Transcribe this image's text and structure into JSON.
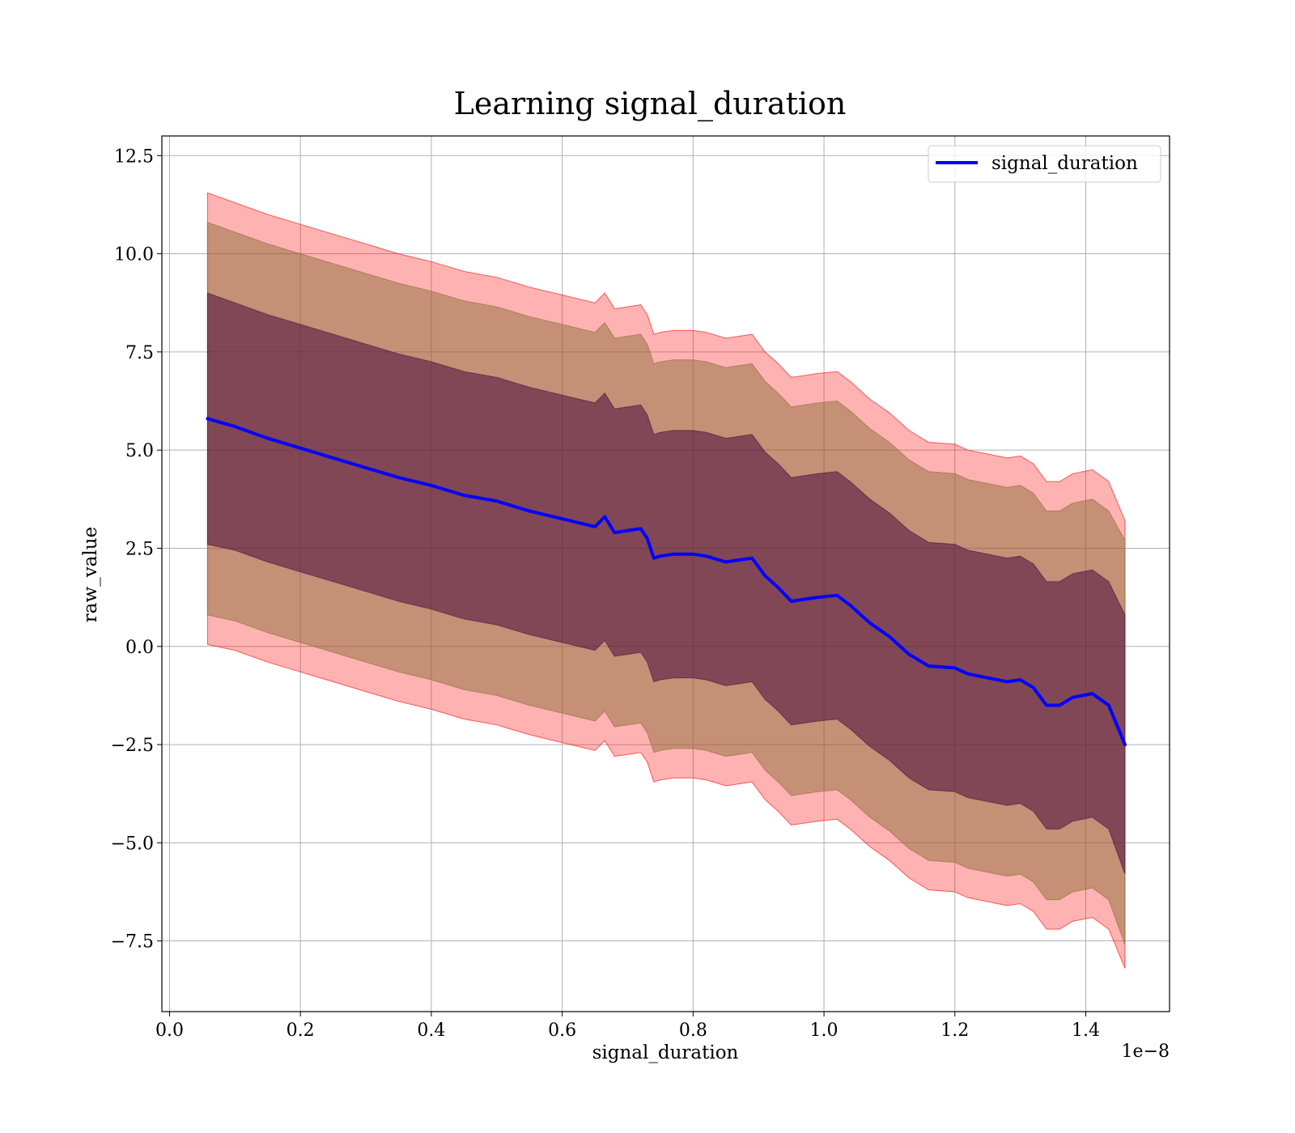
{
  "chart_data": {
    "type": "area",
    "title": "Learning signal_duration",
    "xlabel": "signal_duration",
    "ylabel": "raw_value",
    "x_offset_text": "1e−8",
    "xlim": [
      -0.0117,
      1.528
    ],
    "ylim": [
      -9.3,
      13.0
    ],
    "grid": true,
    "legend_position": "top-right",
    "x_ticks": [
      0.0,
      0.2,
      0.4,
      0.6,
      0.8,
      1.0,
      1.2,
      1.4
    ],
    "x_tick_labels": [
      "0.0",
      "0.2",
      "0.4",
      "0.6",
      "0.8",
      "1.0",
      "1.2",
      "1.4"
    ],
    "y_ticks": [
      -7.5,
      -5.0,
      -2.5,
      0.0,
      2.5,
      5.0,
      7.5,
      10.0,
      12.5
    ],
    "y_tick_labels": [
      "−7.5",
      "−5.0",
      "−2.5",
      "0.0",
      "2.5",
      "5.0",
      "7.5",
      "10.0",
      "12.5"
    ],
    "x": [
      0.058,
      0.1,
      0.15,
      0.2,
      0.25,
      0.3,
      0.35,
      0.4,
      0.45,
      0.5,
      0.55,
      0.6,
      0.65,
      0.665,
      0.68,
      0.7,
      0.72,
      0.73,
      0.74,
      0.75,
      0.77,
      0.8,
      0.82,
      0.85,
      0.87,
      0.89,
      0.91,
      0.93,
      0.95,
      0.97,
      0.99,
      1.02,
      1.04,
      1.07,
      1.1,
      1.13,
      1.16,
      1.2,
      1.22,
      1.25,
      1.28,
      1.3,
      1.32,
      1.34,
      1.36,
      1.38,
      1.41,
      1.435,
      1.46
    ],
    "series": [
      {
        "name": "signal_duration",
        "color": "#0000ff",
        "values": [
          5.8,
          5.6,
          5.3,
          5.05,
          4.8,
          4.55,
          4.3,
          4.1,
          3.85,
          3.7,
          3.45,
          3.25,
          3.05,
          3.3,
          2.9,
          2.95,
          3.0,
          2.75,
          2.25,
          2.3,
          2.35,
          2.35,
          2.3,
          2.15,
          2.2,
          2.25,
          1.8,
          1.5,
          1.15,
          1.2,
          1.25,
          1.3,
          1.05,
          0.6,
          0.25,
          -0.2,
          -0.5,
          -0.55,
          -0.7,
          -0.8,
          -0.9,
          -0.85,
          -1.05,
          -1.5,
          -1.5,
          -1.3,
          -1.2,
          -1.5,
          -2.5
        ]
      }
    ],
    "bands": [
      {
        "color": "#ff0000",
        "opacity": 0.3,
        "upper": [
          11.55,
          11.3,
          11.0,
          10.75,
          10.5,
          10.25,
          10.0,
          9.8,
          9.55,
          9.4,
          9.15,
          8.95,
          8.75,
          9.0,
          8.6,
          8.65,
          8.7,
          8.45,
          7.95,
          8.0,
          8.05,
          8.05,
          8.0,
          7.85,
          7.9,
          7.95,
          7.5,
          7.2,
          6.85,
          6.9,
          6.95,
          7.0,
          6.75,
          6.3,
          5.95,
          5.5,
          5.2,
          5.15,
          5.0,
          4.9,
          4.8,
          4.85,
          4.65,
          4.2,
          4.2,
          4.4,
          4.5,
          4.2,
          3.2
        ],
        "lower": [
          0.05,
          -0.1,
          -0.4,
          -0.65,
          -0.9,
          -1.15,
          -1.4,
          -1.6,
          -1.85,
          -2.0,
          -2.25,
          -2.45,
          -2.65,
          -2.4,
          -2.8,
          -2.75,
          -2.7,
          -2.95,
          -3.45,
          -3.4,
          -3.35,
          -3.35,
          -3.4,
          -3.55,
          -3.5,
          -3.45,
          -3.9,
          -4.2,
          -4.55,
          -4.5,
          -4.45,
          -4.4,
          -4.65,
          -5.1,
          -5.45,
          -5.9,
          -6.2,
          -6.25,
          -6.4,
          -6.5,
          -6.6,
          -6.55,
          -6.75,
          -7.2,
          -7.2,
          -7.0,
          -6.9,
          -7.2,
          -8.2
        ]
      },
      {
        "color": "#8c6d3a",
        "opacity": 0.5,
        "upper": [
          10.8,
          10.55,
          10.25,
          10.0,
          9.75,
          9.5,
          9.25,
          9.05,
          8.8,
          8.65,
          8.4,
          8.2,
          8.0,
          8.25,
          7.85,
          7.9,
          7.95,
          7.7,
          7.2,
          7.25,
          7.3,
          7.3,
          7.25,
          7.1,
          7.15,
          7.2,
          6.75,
          6.45,
          6.1,
          6.15,
          6.2,
          6.25,
          6.0,
          5.55,
          5.2,
          4.75,
          4.45,
          4.4,
          4.25,
          4.15,
          4.05,
          4.1,
          3.9,
          3.45,
          3.45,
          3.65,
          3.75,
          3.45,
          2.7
        ],
        "lower": [
          0.8,
          0.65,
          0.35,
          0.1,
          -0.15,
          -0.4,
          -0.65,
          -0.85,
          -1.1,
          -1.25,
          -1.5,
          -1.7,
          -1.9,
          -1.65,
          -2.05,
          -2.0,
          -1.95,
          -2.2,
          -2.7,
          -2.65,
          -2.6,
          -2.6,
          -2.65,
          -2.8,
          -2.75,
          -2.7,
          -3.15,
          -3.45,
          -3.8,
          -3.75,
          -3.7,
          -3.65,
          -3.9,
          -4.35,
          -4.7,
          -5.15,
          -5.45,
          -5.5,
          -5.65,
          -5.75,
          -5.85,
          -5.8,
          -6.0,
          -6.45,
          -6.45,
          -6.25,
          -6.15,
          -6.45,
          -7.6
        ]
      },
      {
        "color": "#4b0b3c",
        "opacity": 0.55,
        "upper": [
          9.0,
          8.75,
          8.45,
          8.2,
          7.95,
          7.7,
          7.45,
          7.25,
          7.0,
          6.85,
          6.6,
          6.4,
          6.2,
          6.45,
          6.05,
          6.1,
          6.15,
          5.9,
          5.4,
          5.45,
          5.5,
          5.5,
          5.45,
          5.3,
          5.35,
          5.4,
          4.95,
          4.65,
          4.3,
          4.35,
          4.4,
          4.45,
          4.2,
          3.75,
          3.4,
          2.95,
          2.65,
          2.6,
          2.45,
          2.35,
          2.25,
          2.3,
          2.1,
          1.65,
          1.65,
          1.85,
          1.95,
          1.65,
          0.8
        ],
        "lower": [
          2.6,
          2.45,
          2.15,
          1.9,
          1.65,
          1.4,
          1.15,
          0.95,
          0.7,
          0.55,
          0.3,
          0.1,
          -0.1,
          0.15,
          -0.25,
          -0.2,
          -0.15,
          -0.4,
          -0.9,
          -0.85,
          -0.8,
          -0.8,
          -0.85,
          -1.0,
          -0.95,
          -0.9,
          -1.35,
          -1.65,
          -2.0,
          -1.95,
          -1.9,
          -1.85,
          -2.1,
          -2.55,
          -2.9,
          -3.35,
          -3.65,
          -3.7,
          -3.85,
          -3.95,
          -4.05,
          -4.0,
          -4.2,
          -4.65,
          -4.65,
          -4.45,
          -4.35,
          -4.65,
          -5.8
        ]
      }
    ]
  }
}
